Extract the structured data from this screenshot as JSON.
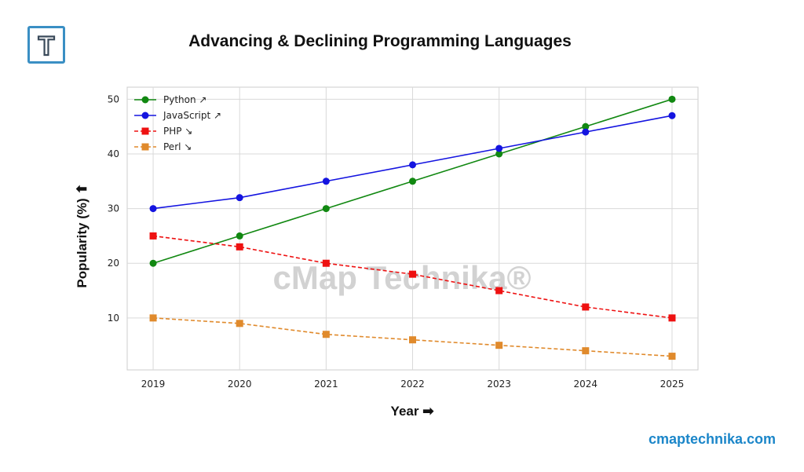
{
  "header": {
    "logo_icon": "letter-t-logo-icon",
    "logo_letter": "T",
    "title": "Advancing & Declining Programming Languages"
  },
  "footer": {
    "site": "cmaptechnika.com"
  },
  "watermark": "cMap Technika®",
  "chart_data": {
    "type": "line",
    "title": "Advancing & Declining Programming Languages",
    "xlabel": "Year ➡",
    "ylabel": "Popularity (%) ⬆",
    "x": [
      2019,
      2020,
      2021,
      2022,
      2023,
      2024,
      2025
    ],
    "xlim": [
      2018.7,
      2025.3
    ],
    "ylim": [
      0.5,
      52.2
    ],
    "yticks": [
      10,
      20,
      30,
      40,
      50
    ],
    "grid": true,
    "legend_position": "top-left",
    "series": [
      {
        "name": "Python ↗",
        "values": [
          20,
          25,
          30,
          35,
          40,
          45,
          50
        ],
        "color": "#118811",
        "dashed": false,
        "marker": "circle"
      },
      {
        "name": "JavaScript ↗",
        "values": [
          30,
          32,
          35,
          38,
          41,
          44,
          47
        ],
        "color": "#1414e0",
        "dashed": false,
        "marker": "circle"
      },
      {
        "name": "PHP ↘",
        "values": [
          25,
          23,
          20,
          18,
          15,
          12,
          10
        ],
        "color": "#ee1111",
        "dashed": true,
        "marker": "square"
      },
      {
        "name": "Perl ↘",
        "values": [
          10,
          9,
          7,
          6,
          5,
          4,
          3
        ],
        "color": "#e08a2c",
        "dashed": true,
        "marker": "square"
      }
    ]
  }
}
